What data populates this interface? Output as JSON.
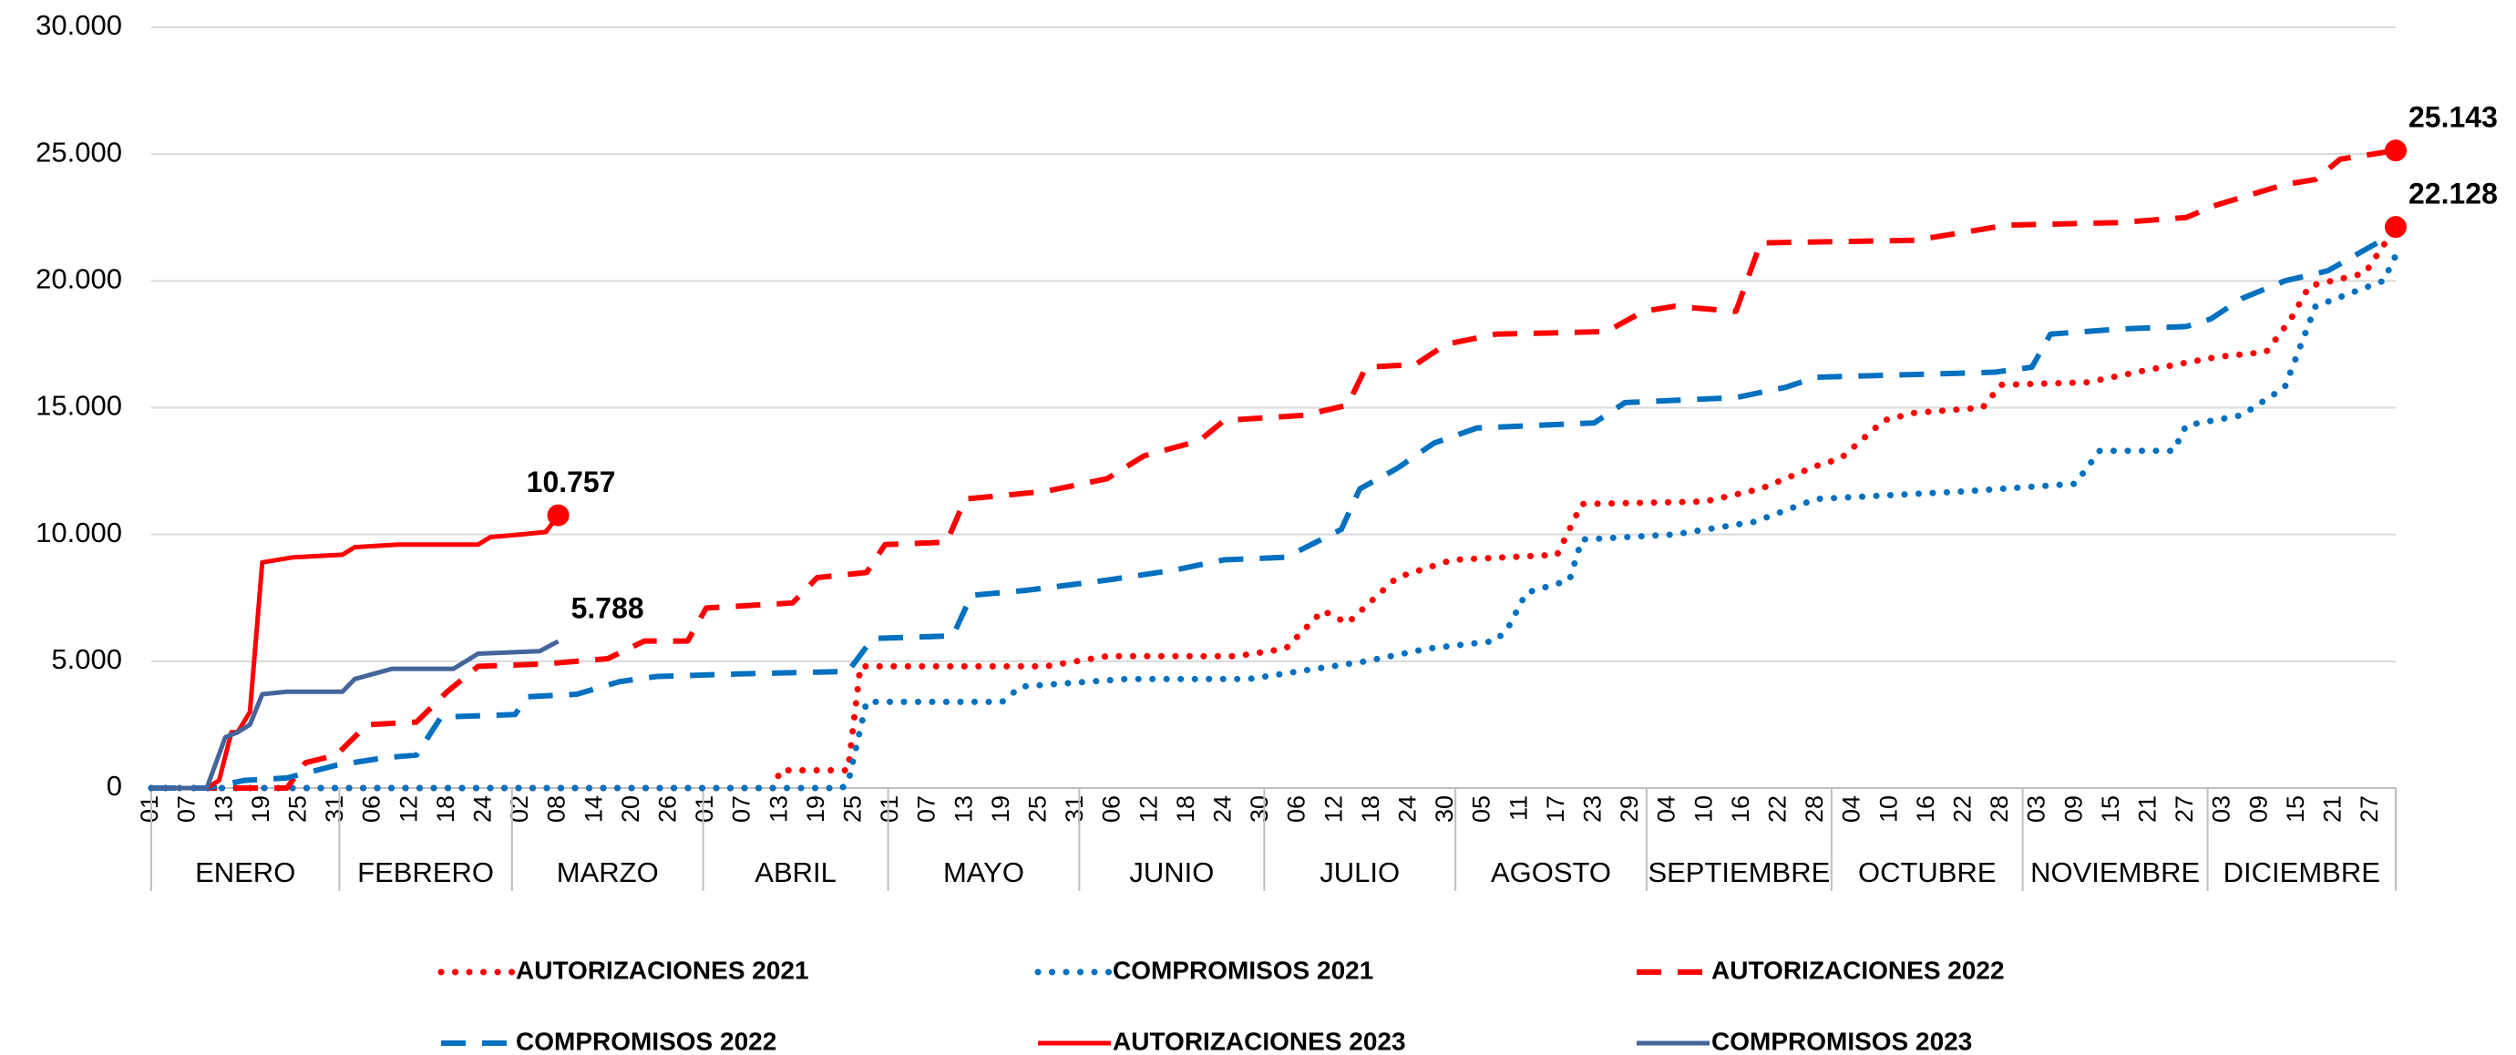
{
  "chart_data": {
    "type": "line",
    "xlim": [
      1,
      365
    ],
    "ylim": [
      0,
      30000
    ],
    "yticks": [
      0,
      {
        "value": 5000,
        "label": "5.000"
      },
      {
        "value": 10000,
        "label": "10.000"
      },
      {
        "value": 15000,
        "label": "15.000"
      },
      {
        "value": 20000,
        "label": "20.000"
      },
      {
        "value": 25000,
        "label": "25.000"
      },
      {
        "value": 30000,
        "label": "30.000"
      }
    ],
    "xticks": [
      {
        "value": 1,
        "label": "01"
      },
      {
        "value": 7,
        "label": "07"
      },
      {
        "value": 13,
        "label": "13"
      },
      {
        "value": 19,
        "label": "19"
      },
      {
        "value": 25,
        "label": "25"
      },
      {
        "value": 31,
        "label": "31"
      },
      {
        "value": 37,
        "label": "06"
      },
      {
        "value": 43,
        "label": "12"
      },
      {
        "value": 49,
        "label": "18"
      },
      {
        "value": 55,
        "label": "24"
      },
      {
        "value": 61,
        "label": "02"
      },
      {
        "value": 67,
        "label": "08"
      },
      {
        "value": 73,
        "label": "14"
      },
      {
        "value": 79,
        "label": "20"
      },
      {
        "value": 85,
        "label": "26"
      },
      {
        "value": 91,
        "label": "01"
      },
      {
        "value": 97,
        "label": "07"
      },
      {
        "value": 103,
        "label": "13"
      },
      {
        "value": 109,
        "label": "19"
      },
      {
        "value": 115,
        "label": "25"
      },
      {
        "value": 121,
        "label": "01"
      },
      {
        "value": 127,
        "label": "07"
      },
      {
        "value": 133,
        "label": "13"
      },
      {
        "value": 139,
        "label": "19"
      },
      {
        "value": 145,
        "label": "25"
      },
      {
        "value": 151,
        "label": "31"
      },
      {
        "value": 157,
        "label": "06"
      },
      {
        "value": 163,
        "label": "12"
      },
      {
        "value": 169,
        "label": "18"
      },
      {
        "value": 175,
        "label": "24"
      },
      {
        "value": 181,
        "label": "30"
      },
      {
        "value": 187,
        "label": "06"
      },
      {
        "value": 193,
        "label": "12"
      },
      {
        "value": 199,
        "label": "18"
      },
      {
        "value": 205,
        "label": "24"
      },
      {
        "value": 211,
        "label": "30"
      },
      {
        "value": 217,
        "label": "05"
      },
      {
        "value": 223,
        "label": "11"
      },
      {
        "value": 229,
        "label": "17"
      },
      {
        "value": 235,
        "label": "23"
      },
      {
        "value": 241,
        "label": "29"
      },
      {
        "value": 247,
        "label": "04"
      },
      {
        "value": 253,
        "label": "10"
      },
      {
        "value": 259,
        "label": "16"
      },
      {
        "value": 265,
        "label": "22"
      },
      {
        "value": 271,
        "label": "28"
      },
      {
        "value": 277,
        "label": "04"
      },
      {
        "value": 283,
        "label": "10"
      },
      {
        "value": 289,
        "label": "16"
      },
      {
        "value": 295,
        "label": "22"
      },
      {
        "value": 301,
        "label": "28"
      },
      {
        "value": 307,
        "label": "03"
      },
      {
        "value": 313,
        "label": "09"
      },
      {
        "value": 319,
        "label": "15"
      },
      {
        "value": 325,
        "label": "21"
      },
      {
        "value": 331,
        "label": "27"
      },
      {
        "value": 337,
        "label": "03"
      },
      {
        "value": 343,
        "label": "09"
      },
      {
        "value": 349,
        "label": "15"
      },
      {
        "value": 355,
        "label": "21"
      },
      {
        "value": 361,
        "label": "27"
      }
    ],
    "months": [
      "ENERO",
      "FEBRERO",
      "MARZO",
      "ABRIL",
      "MAYO",
      "JUNIO",
      "JULIO",
      "AGOSTO",
      "SEPTIEMBRE",
      "OCTUBRE",
      "NOVIEMBRE",
      "DICIEMBRE"
    ],
    "grid": true,
    "legend": "bottom",
    "series": [
      {
        "name": "AUTORIZACIONES 2021",
        "color": "#ff0000",
        "style": "dot",
        "x": [
          1,
          102,
          103,
          114,
          116,
          146,
          156,
          177,
          185,
          191,
          195,
          203,
          212,
          229,
          233,
          253,
          262,
          271,
          275,
          282,
          287,
          298,
          301,
          315,
          325,
          336,
          344,
          348,
          351,
          360,
          365
        ],
        "values": [
          0,
          0,
          700,
          700,
          4800,
          4800,
          5200,
          5200,
          5500,
          7000,
          6500,
          8300,
          9000,
          9200,
          11200,
          11300,
          11800,
          12700,
          13000,
          14500,
          14800,
          15000,
          15900,
          16000,
          16500,
          17000,
          17200,
          18500,
          19800,
          20300,
          22128
        ],
        "value_labels": [
          null,
          null,
          null,
          null,
          null,
          null,
          null,
          null,
          null,
          null,
          null,
          null,
          null,
          null,
          null,
          null,
          null,
          null,
          null,
          null,
          null,
          null,
          null,
          null,
          null,
          null,
          null,
          null,
          null,
          null,
          "22.128"
        ],
        "marker": true
      },
      {
        "name": "COMPROMISOS 2021",
        "color": "#0070c0",
        "style": "dot",
        "x": [
          1,
          113,
          114,
          117,
          139,
          142,
          159,
          179,
          187,
          198,
          208,
          219,
          221,
          224,
          231,
          233,
          248,
          261,
          271,
          295,
          313,
          317,
          329,
          331,
          340,
          347,
          352,
          363,
          365
        ],
        "values": [
          0,
          0,
          200,
          3400,
          3400,
          4000,
          4300,
          4300,
          4600,
          5000,
          5500,
          5800,
          6300,
          7700,
          8200,
          9800,
          10000,
          10500,
          11400,
          11700,
          12000,
          13300,
          13300,
          14300,
          14700,
          15800,
          19000,
          20000,
          21000
        ]
      },
      {
        "name": "AUTORIZACIONES 2022",
        "color": "#ff0000",
        "style": "dash",
        "x": [
          1,
          23,
          26,
          31,
          36,
          44,
          49,
          54,
          65,
          75,
          81,
          88,
          91,
          105,
          109,
          117,
          120,
          130,
          133,
          146,
          156,
          162,
          171,
          175,
          188,
          195,
          198,
          206,
          211,
          219,
          237,
          243,
          248,
          258,
          262,
          287,
          302,
          320,
          331,
          336,
          347,
          352,
          356,
          365
        ],
        "values": [
          0,
          0,
          1000,
          1300,
          2500,
          2600,
          3800,
          4800,
          4900,
          5100,
          5800,
          5800,
          7100,
          7300,
          8300,
          8500,
          9600,
          9700,
          11400,
          11700,
          12200,
          13100,
          13700,
          14500,
          14700,
          15100,
          16600,
          16700,
          17500,
          17900,
          18000,
          18800,
          19000,
          18800,
          21500,
          21600,
          22200,
          22300,
          22500,
          23000,
          23800,
          24000,
          24800,
          25143
        ],
        "value_labels": [
          null,
          null,
          null,
          null,
          null,
          null,
          null,
          null,
          null,
          null,
          null,
          null,
          null,
          null,
          null,
          null,
          null,
          null,
          null,
          null,
          null,
          null,
          null,
          null,
          null,
          null,
          null,
          null,
          null,
          null,
          null,
          null,
          null,
          null,
          null,
          null,
          null,
          null,
          null,
          null,
          null,
          null,
          null,
          "25.143"
        ],
        "marker": true
      },
      {
        "name": "COMPROMISOS 2022",
        "color": "#0070c0",
        "style": "dash",
        "x": [
          1,
          10,
          16,
          23,
          31,
          39,
          44,
          48,
          60,
          62,
          70,
          77,
          83,
          96,
          114,
          118,
          131,
          134,
          143,
          156,
          167,
          175,
          185,
          194,
          197,
          203,
          209,
          216,
          235,
          240,
          258,
          266,
          271,
          300,
          306,
          309,
          320,
          331,
          335,
          340,
          347,
          354,
          362
        ],
        "values": [
          0,
          0,
          300,
          400,
          900,
          1200,
          1300,
          2800,
          2900,
          3600,
          3700,
          4200,
          4400,
          4500,
          4600,
          5900,
          6000,
          7600,
          7800,
          8200,
          8600,
          9000,
          9100,
          10200,
          11800,
          12600,
          13600,
          14200,
          14400,
          15200,
          15400,
          15800,
          16200,
          16400,
          16600,
          17900,
          18100,
          18200,
          18500,
          19300,
          20000,
          20400,
          21500
        ]
      },
      {
        "name": "AUTORIZACIONES 2023",
        "color": "#ff0000",
        "style": "solid",
        "x": [
          1,
          10,
          12,
          14,
          15,
          17,
          19,
          24,
          32,
          34,
          41,
          54,
          56,
          61,
          65,
          67
        ],
        "values": [
          0,
          0,
          300,
          2200,
          2200,
          3000,
          8900,
          9100,
          9200,
          9500,
          9600,
          9600,
          9900,
          10000,
          10100,
          10757
        ],
        "value_labels": [
          null,
          null,
          null,
          null,
          null,
          null,
          null,
          null,
          null,
          null,
          null,
          null,
          null,
          null,
          null,
          "10.757"
        ],
        "marker": true
      },
      {
        "name": "COMPROMISOS 2023",
        "color": "#44659b",
        "style": "solid",
        "x": [
          1,
          10,
          13,
          15,
          17,
          19,
          23,
          32,
          34,
          40,
          50,
          52,
          54,
          64,
          67
        ],
        "values": [
          0,
          0,
          2000,
          2200,
          2500,
          3700,
          3800,
          3800,
          4300,
          4700,
          4700,
          5000,
          5300,
          5400,
          5788
        ],
        "value_labels": [
          null,
          null,
          null,
          null,
          null,
          null,
          null,
          null,
          null,
          null,
          null,
          null,
          null,
          null,
          "5.788"
        ]
      }
    ]
  }
}
